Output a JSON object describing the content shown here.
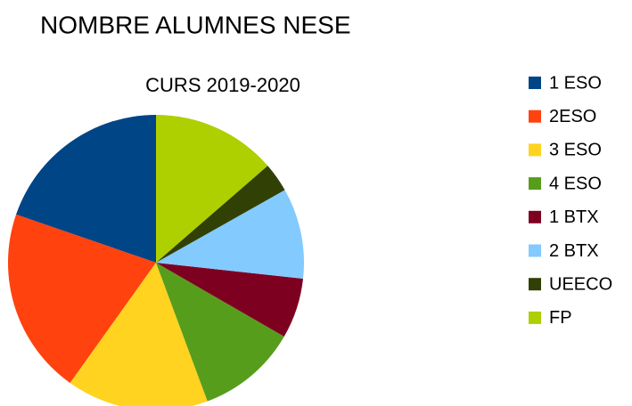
{
  "chart_data": {
    "type": "pie",
    "title": "NOMBRE ALUMNES NESE",
    "subtitle": "CURS 2019-2020",
    "categories": [
      "1 ESO",
      "2ESO",
      "3 ESO",
      "4 ESO",
      "1 BTX",
      "2 BTX",
      "UEECO",
      "FP"
    ],
    "values": [
      19.7,
      20.4,
      15.5,
      11,
      6.6,
      9.9,
      3.2,
      13.6
    ],
    "colors": [
      "#004586",
      "#ff420e",
      "#ffd320",
      "#579d1c",
      "#7e0021",
      "#83caff",
      "#314004",
      "#aecf00"
    ],
    "legend": "right"
  }
}
